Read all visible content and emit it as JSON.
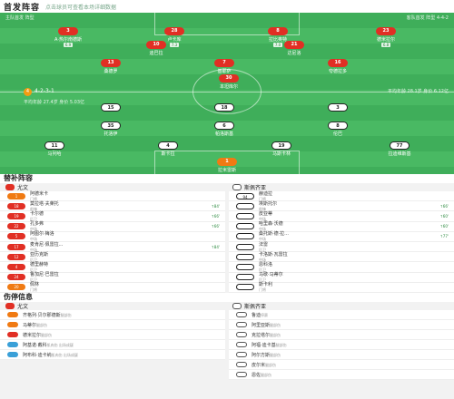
{
  "header": {
    "title": "首发阵容",
    "subtitle": "点击球员可查看本场详细数据"
  },
  "pitch": {
    "top_left_info": "主队首发  阵型",
    "top_right_info": "客队首发 阵型 4-4-2",
    "left_formation": {
      "num": "4",
      "text": "4-2-3-1"
    },
    "right_formation_info": "平均年龄 28.1岁 身价 6.12亿",
    "left_info": "平均年龄 27.4岁 身价 5.03亿",
    "note_top_1": "阵容 1",
    "note_top_2": "阵容 2",
    "center_label": "球队中场"
  },
  "home_players": [
    {
      "num": "3",
      "name": "A·热尔南德斯",
      "rating": "6.9"
    },
    {
      "num": "28",
      "name": "卢卡库",
      "rating": "7.3"
    },
    {
      "num": "8",
      "name": "拉比奥特",
      "rating": "7.0"
    },
    {
      "num": "23",
      "name": "德米拉尔",
      "rating": "6.8"
    },
    {
      "num": "10",
      "name": "迪巴拉",
      "rating": "7.4"
    },
    {
      "num": "21",
      "name": "达尼洛",
      "rating": "6.6"
    },
    {
      "num": "13",
      "name": "桑德罗",
      "rating": "6.9"
    },
    {
      "num": "7",
      "name": "基耶萨",
      "rating": "6.5"
    },
    {
      "num": "16",
      "name": "夸德拉多",
      "rating": "6.8"
    },
    {
      "num": "30",
      "name": "本坦库尔",
      "rating": "7.7"
    }
  ],
  "away_players": [
    {
      "num": "35",
      "name": "托洛伊",
      "rating": "6.7"
    },
    {
      "num": "6",
      "name": "帕洛斯基",
      "rating": "6.3"
    },
    {
      "num": "8",
      "name": "伦巴",
      "rating": "6.0"
    },
    {
      "num": "15",
      "name": "格罗索维奇",
      "rating": "7.1"
    },
    {
      "num": "18",
      "name": "沃尔德马尔·迪亚斯",
      "rating": "6.5"
    },
    {
      "num": "3",
      "name": "J·费雷拉",
      "rating": "5.7"
    },
    {
      "num": "11",
      "name": "马列哈",
      "rating": "6.8"
    },
    {
      "num": "4",
      "name": "斯卡拉",
      "rating": "6.4"
    },
    {
      "num": "19",
      "name": "马斯卡林",
      "rating": "6.1"
    },
    {
      "num": "1",
      "name": "拉米雷斯",
      "rating": "6.2"
    },
    {
      "num": "77",
      "name": "拉迪维斯基",
      "rating": "6.1"
    }
  ],
  "subs": {
    "title": "替补阵容",
    "home_team": "尤文",
    "away_team": "斯佩齐亚",
    "home": [
      {
        "num": "1",
        "name": "阿德米卡",
        "pos": "门将",
        "time": ""
      },
      {
        "num": "18",
        "name": "莫拉塔·夫莱托",
        "pos": "前锋",
        "time": "↑84'"
      },
      {
        "num": "19",
        "name": "卡尔德",
        "pos": "后卫",
        "time": "↑66'"
      },
      {
        "num": "22",
        "name": "孔多弗",
        "pos": "中场",
        "time": "↑66'"
      },
      {
        "num": "5",
        "name": "阿图尔·梅洛",
        "pos": "中场",
        "time": ""
      },
      {
        "num": "17",
        "name": "麦肯尼·佩雷拉...",
        "pos": "中场",
        "time": "↑84'"
      },
      {
        "num": "12",
        "name": "亚历克斯",
        "pos": "后卫",
        "time": ""
      },
      {
        "num": "4",
        "name": "德里赫特",
        "pos": "后卫",
        "time": ""
      },
      {
        "num": "24",
        "name": "鲁加尼·巴雷拉",
        "pos": "后卫",
        "time": ""
      },
      {
        "num": "20",
        "name": "佩林",
        "pos": "门将",
        "time": ""
      }
    ],
    "away": [
      {
        "num": "94",
        "name": "赫迪拉",
        "pos": "门将",
        "time": ""
      },
      {
        "num": "",
        "name": "埃斯托尔",
        "pos": "前锋",
        "time": "↑66'"
      },
      {
        "num": "",
        "name": "皮亚蒂",
        "pos": "中场",
        "time": "↑60'"
      },
      {
        "num": "",
        "name": "哈里森·沃德",
        "pos": "中场",
        "time": "↑60'"
      },
      {
        "num": "",
        "name": "桑托斯·德·拉...",
        "pos": "中场",
        "time": "↑77'"
      },
      {
        "num": "",
        "name": "法雷",
        "pos": "后卫",
        "time": ""
      },
      {
        "num": "",
        "name": "卡洛斯·瓦雷拉",
        "pos": "中场",
        "time": ""
      },
      {
        "num": "",
        "name": "恩科洛",
        "pos": "后卫",
        "time": ""
      },
      {
        "num": "",
        "name": "马歇·马蒂尔",
        "pos": "后卫",
        "time": ""
      },
      {
        "num": "",
        "name": "斯卡利",
        "pos": "门将",
        "time": ""
      }
    ]
  },
  "injury": {
    "title": "伤停信息",
    "home": [
      {
        "name": "齐格列·贝尔那德斯",
        "reason": "腿部伤"
      },
      {
        "name": "马蒂尔",
        "reason": "腿部伤"
      },
      {
        "name": "德米拉尔",
        "reason": "腿部伤"
      },
      {
        "name": "阿基诺·戴科",
        "reason": "肌肉伤 出场成疑"
      },
      {
        "name": "阿布科·迪卡纳",
        "reason": "肌肉伤 出场成疑"
      }
    ],
    "away": [
      {
        "name": "鲁迪",
        "reason": "停赛"
      },
      {
        "name": "阿里亚斯",
        "reason": "腿部伤"
      },
      {
        "name": "克拉塔尔",
        "reason": "腿部伤"
      },
      {
        "name": "阿福·迪卡基",
        "reason": "腿部伤"
      },
      {
        "name": "阿尔方斯",
        "reason": "腿部伤"
      },
      {
        "name": "皮尔米",
        "reason": "腿部伤"
      },
      {
        "name": "恩佐",
        "reason": "腿部伤"
      }
    ]
  },
  "colors": {
    "home": "#e12f24",
    "away": "#ffffff",
    "pitch": "#3fae5a",
    "accent": "#f07a13"
  }
}
